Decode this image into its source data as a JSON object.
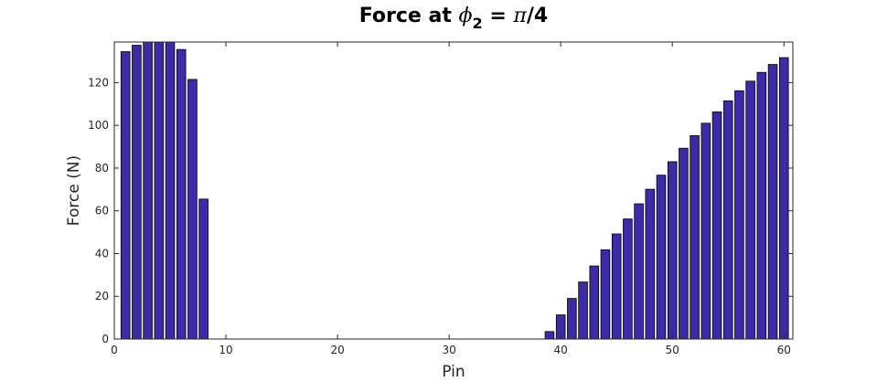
{
  "chart_data": {
    "type": "bar",
    "title": {
      "prefix": "Force at ",
      "symbol": "ϕ",
      "subscript": "2",
      "mid": " = ",
      "pi": "π",
      "suffix": "/4"
    },
    "xlabel": "Pin",
    "ylabel": "Force (N)",
    "xlim": [
      0,
      60.8
    ],
    "ylim": [
      0,
      139
    ],
    "xticks": [
      0,
      10,
      20,
      30,
      40,
      50,
      60
    ],
    "yticks": [
      0,
      20,
      40,
      60,
      80,
      100,
      120
    ],
    "bar_color": "#3d2aa6",
    "bar_edge_color": "#000000",
    "grid": false,
    "x": [
      1,
      2,
      3,
      4,
      5,
      6,
      7,
      8,
      9,
      10,
      11,
      12,
      13,
      14,
      15,
      16,
      17,
      18,
      19,
      20,
      21,
      22,
      23,
      24,
      25,
      26,
      27,
      28,
      29,
      30,
      31,
      32,
      33,
      34,
      35,
      36,
      37,
      38,
      39,
      40,
      41,
      42,
      43,
      44,
      45,
      46,
      47,
      48,
      49,
      50,
      51,
      52,
      53,
      54,
      55,
      56,
      57,
      58,
      59,
      60
    ],
    "values": [
      134.5,
      137.5,
      139,
      139,
      139,
      135.5,
      121.5,
      65.5,
      0,
      0,
      0,
      0,
      0,
      0,
      0,
      0,
      0,
      0,
      0,
      0,
      0,
      0,
      0,
      0,
      0,
      0,
      0,
      0,
      0,
      0,
      0,
      0,
      0,
      0,
      0,
      0,
      0,
      0,
      3.5,
      11.3,
      19,
      26.7,
      34.2,
      41.8,
      49.2,
      56.2,
      63.3,
      70.1,
      76.7,
      83,
      89.3,
      95.2,
      101,
      106.3,
      111.5,
      116.2,
      120.7,
      124.8,
      128.5,
      131.7
    ]
  }
}
